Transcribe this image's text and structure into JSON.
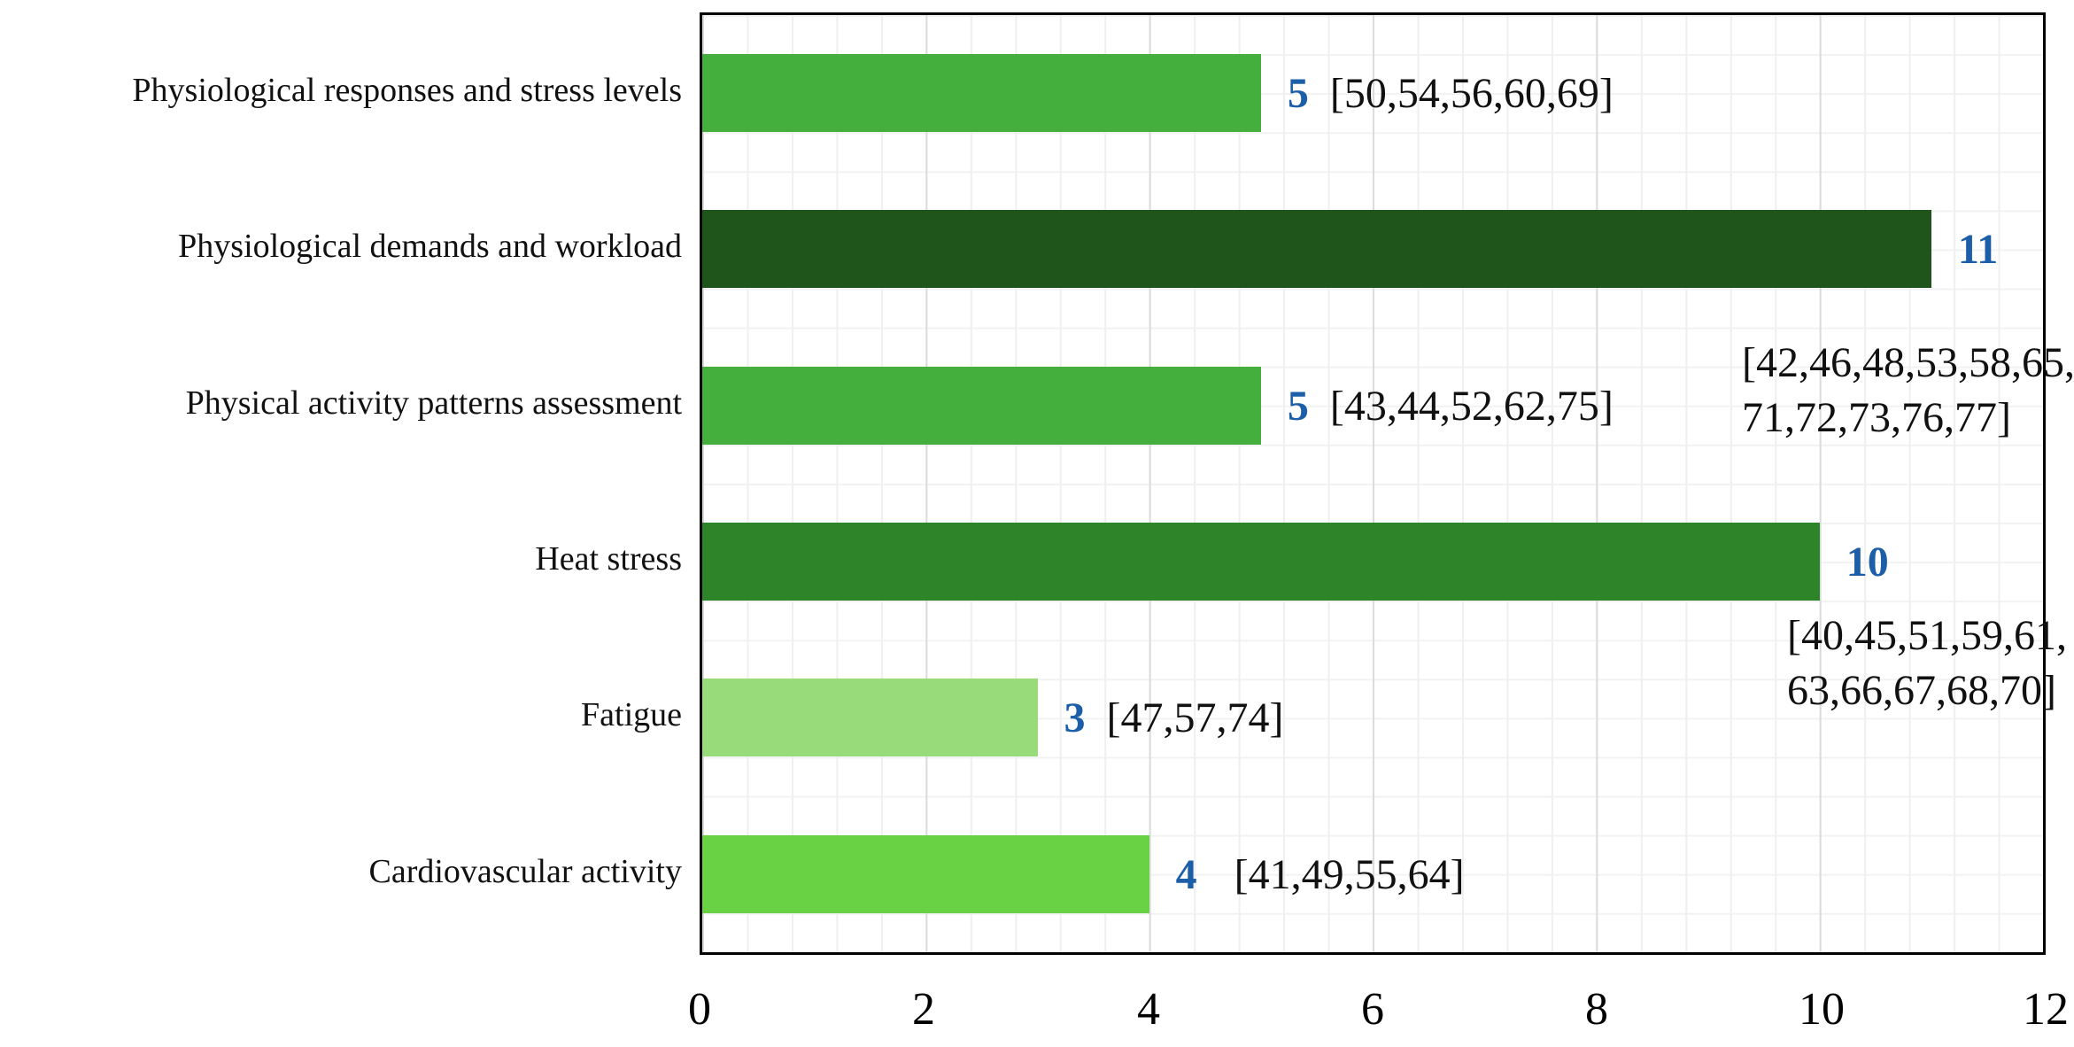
{
  "chart_data": {
    "type": "bar",
    "orientation": "horizontal",
    "title": "",
    "xlabel": "",
    "ylabel": "",
    "grid": "light gray minor grid; darker vertical lines every 2 units",
    "legend": "none",
    "x_axis": {
      "min": 0,
      "max": 12,
      "major_unit": 2,
      "minor_unit": 0.4,
      "ticks": [
        "0",
        "2",
        "4",
        "6",
        "8",
        "10",
        "12"
      ]
    },
    "categories": [
      "Physiological responses and stress levels",
      "Physiological demands and workload",
      "Physical activity patterns assessment",
      "Heat stress",
      "Fatigue",
      "Cardiovascular activity"
    ],
    "values": [
      5,
      11,
      5,
      10,
      3,
      4
    ],
    "value_label_color": "#1C5FA8",
    "bars": [
      {
        "label": "Physiological responses and stress levels",
        "value": "5",
        "color": "#44AF3C",
        "refs_lines": [
          "[50,54,56,60,69]"
        ]
      },
      {
        "label": "Physiological demands and workload",
        "value": "11",
        "color": "#1F551B",
        "refs_lines": [
          "[42,46,48,53,58,65,",
          "71,72,73,76,77]"
        ]
      },
      {
        "label": "Physical activity patterns assessment",
        "value": "5",
        "color": "#44AF3C",
        "refs_lines": [
          "[43,44,52,62,75]"
        ]
      },
      {
        "label": "Heat stress",
        "value": "10",
        "color": "#2E8429",
        "refs_lines": [
          "[40,45,51,59,61,",
          "63,66,67,68,70]"
        ]
      },
      {
        "label": "Fatigue",
        "value": "3",
        "color": "#97DB7B",
        "refs_lines": [
          "[47,57,74]"
        ]
      },
      {
        "label": "Cardiovascular activity",
        "value": "4",
        "color": "#68D144",
        "refs_lines": [
          "[41,49,55,64]"
        ]
      }
    ]
  }
}
